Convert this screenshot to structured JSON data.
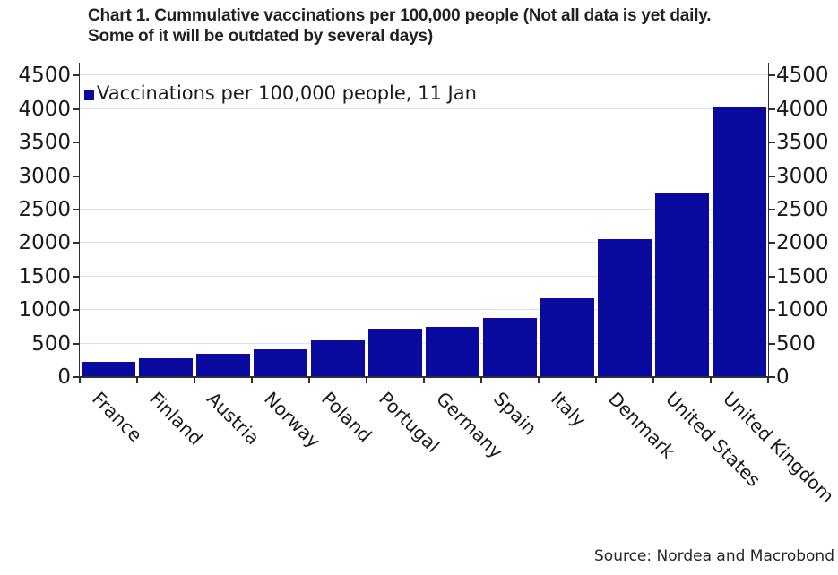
{
  "title": {
    "line1": "Chart 1. Cummulative vaccinations per 100,000 people (Not all data is yet daily.",
    "line2": "Some of it will be outdated by several days)"
  },
  "legend": {
    "label": "Vaccinations per 100,000 people, 11 Jan"
  },
  "source": "Source: Nordea and Macrobond",
  "colors": {
    "bar": "#0a0a9f",
    "grid": "#dce2ec",
    "axis": "#2e2e2e",
    "text": "#1a1a1a"
  },
  "chart_data": {
    "type": "bar",
    "title": "Chart 1. Cummulative vaccinations per 100,000 people (Not all data is yet daily. Some of it will be outdated by several days)",
    "categories": [
      "France",
      "Finland",
      "Austria",
      "Norway",
      "Poland",
      "Portugal",
      "Germany",
      "Spain",
      "Italy",
      "Denmark",
      "United States",
      "United Kingdom"
    ],
    "values": [
      230,
      280,
      345,
      420,
      550,
      720,
      755,
      880,
      1170,
      2060,
      2750,
      4040
    ],
    "series_name": "Vaccinations per 100,000 people, 11 Jan",
    "xlabel": "",
    "ylabel": "",
    "ylim": [
      0,
      4500
    ],
    "ytick_step": 500,
    "yticks": [
      0,
      500,
      1000,
      1500,
      2000,
      2500,
      3000,
      3500,
      4000,
      4500
    ],
    "grid": "horizontal",
    "legend_position": "upper-left",
    "dual_y_axis_labels": true,
    "xtick_rotation_deg": 45,
    "source": "Source: Nordea and Macrobond"
  }
}
